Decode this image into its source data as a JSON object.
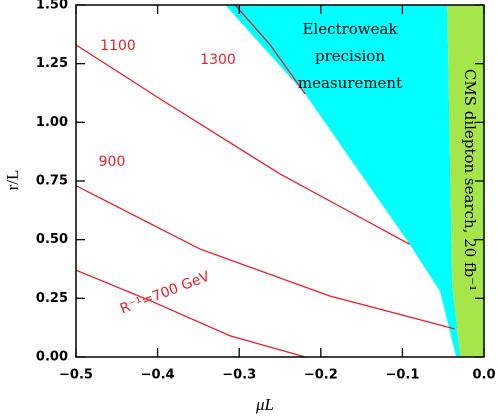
{
  "chart_data": {
    "type": "contour",
    "xlabel": "μL",
    "ylabel": "r/L",
    "xlim": [
      -0.5,
      0.0
    ],
    "ylim": [
      0,
      1.5
    ],
    "xticks": [
      {
        "value": -0.5,
        "label": "−0.5"
      },
      {
        "value": -0.4,
        "label": "−0.4"
      },
      {
        "value": -0.3,
        "label": "−0.3"
      },
      {
        "value": -0.2,
        "label": "−0.2"
      },
      {
        "value": -0.1,
        "label": "−0.1"
      },
      {
        "value": 0.0,
        "label": "0.0"
      }
    ],
    "yticks": [
      {
        "value": 0,
        "label": "0.00"
      },
      {
        "value": 0.25,
        "label": "0.25"
      },
      {
        "value": 0.5,
        "label": "0.50"
      },
      {
        "value": 0.75,
        "label": "0.75"
      },
      {
        "value": 1.0,
        "label": "1.00"
      },
      {
        "value": 1.25,
        "label": "1.25"
      },
      {
        "value": 1.5,
        "label": "1.50"
      }
    ],
    "regions": [
      {
        "label_lines": [
          "Electroweak",
          "precision",
          "measurement"
        ],
        "color": "#00ffff",
        "x": [
          -0.317,
          -0.219,
          -0.091,
          -0.054,
          -0.034,
          -0.029,
          -0.039,
          -0.045
        ],
        "y": [
          1.5,
          1.12,
          0.48,
          0.28,
          0,
          0,
          0.31,
          1.5
        ]
      },
      {
        "label_lines": [
          "CMS dilepton search, 20 fb⁻¹"
        ],
        "color": "#a6e64a",
        "x": [
          -0.045,
          -0.039,
          -0.029,
          0,
          0
        ],
        "y": [
          1.5,
          0.31,
          0,
          0,
          1.5
        ]
      }
    ],
    "series": [
      {
        "name": "R⁻¹=700 GeV",
        "color": "#e8202a",
        "x": [
          -0.5,
          -0.409,
          -0.311,
          -0.219
        ],
        "y": [
          0.37,
          0.24,
          0.09,
          0
        ]
      },
      {
        "name": "900",
        "color": "#e8202a",
        "x": [
          -0.5,
          -0.348,
          -0.189,
          -0.036
        ],
        "y": [
          0.73,
          0.46,
          0.26,
          0.12
        ]
      },
      {
        "name": "1100",
        "color": "#e8202a",
        "x": [
          -0.5,
          -0.397,
          -0.25,
          -0.091
        ],
        "y": [
          1.33,
          1.1,
          0.78,
          0.48
        ]
      },
      {
        "name": "1300",
        "color": "#e8202a",
        "x": [
          -0.305,
          -0.262,
          -0.219
        ],
        "y": [
          1.5,
          1.33,
          1.12
        ]
      }
    ]
  }
}
